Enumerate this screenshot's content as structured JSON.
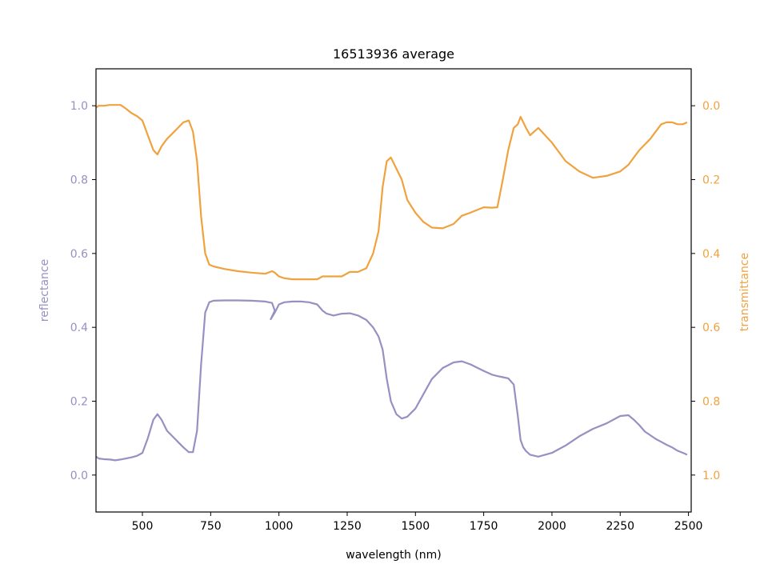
{
  "chart_data": {
    "type": "line",
    "title": "16513936 average",
    "xlabel": "wavelength (nm)",
    "xlim": [
      330,
      2510
    ],
    "x_ticks": [
      500,
      750,
      1000,
      1250,
      1500,
      1750,
      2000,
      2250,
      2500
    ],
    "y_left": {
      "label": "reflectance",
      "lim": [
        -0.1,
        1.1
      ],
      "ticks": [
        0.0,
        0.2,
        0.4,
        0.6,
        0.8,
        1.0
      ],
      "tick_labels": [
        "0.0",
        "0.2",
        "0.4",
        "0.6",
        "0.8",
        "1.0"
      ],
      "color": "#9591c2"
    },
    "y_right": {
      "label": "transmittance",
      "lim": [
        1.1,
        -0.1
      ],
      "inverted": true,
      "ticks": [
        0.0,
        0.2,
        0.4,
        0.6,
        0.8,
        1.0
      ],
      "tick_labels": [
        "0.0",
        "0.2",
        "0.4",
        "0.6",
        "0.8",
        "1.0"
      ],
      "color": "#f0a23e"
    },
    "grid": false,
    "series": [
      {
        "axis": "left",
        "color": "#9591c2",
        "x": [
          330,
          340,
          360,
          380,
          400,
          420,
          440,
          460,
          480,
          500,
          520,
          540,
          555,
          570,
          590,
          610,
          630,
          650,
          670,
          685,
          700,
          715,
          730,
          745,
          760,
          800,
          850,
          900,
          950,
          975,
          985,
          970,
          985,
          1000,
          1020,
          1050,
          1080,
          1110,
          1140,
          1160,
          1175,
          1200,
          1230,
          1260,
          1290,
          1320,
          1345,
          1365,
          1380,
          1395,
          1410,
          1430,
          1450,
          1470,
          1500,
          1530,
          1560,
          1600,
          1640,
          1670,
          1700,
          1750,
          1780,
          1800,
          1820,
          1840,
          1860,
          1875,
          1885,
          1895,
          1905,
          1920,
          1950,
          2000,
          2050,
          2100,
          2150,
          2200,
          2250,
          2280,
          2300,
          2320,
          2340,
          2360,
          2380,
          2400,
          2420,
          2440,
          2460,
          2480,
          2495
        ],
        "y": [
          0.05,
          0.045,
          0.043,
          0.042,
          0.04,
          0.042,
          0.045,
          0.048,
          0.052,
          0.06,
          0.1,
          0.15,
          0.165,
          0.15,
          0.12,
          0.105,
          0.09,
          0.075,
          0.062,
          0.062,
          0.12,
          0.3,
          0.44,
          0.468,
          0.472,
          0.473,
          0.473,
          0.472,
          0.47,
          0.466,
          0.445,
          0.422,
          0.44,
          0.462,
          0.468,
          0.47,
          0.47,
          0.468,
          0.462,
          0.445,
          0.437,
          0.432,
          0.437,
          0.438,
          0.432,
          0.42,
          0.4,
          0.375,
          0.34,
          0.26,
          0.2,
          0.165,
          0.153,
          0.158,
          0.18,
          0.22,
          0.26,
          0.29,
          0.305,
          0.308,
          0.3,
          0.282,
          0.272,
          0.268,
          0.265,
          0.262,
          0.245,
          0.16,
          0.095,
          0.075,
          0.065,
          0.055,
          0.05,
          0.06,
          0.08,
          0.105,
          0.125,
          0.14,
          0.16,
          0.162,
          0.15,
          0.135,
          0.118,
          0.108,
          0.098,
          0.09,
          0.082,
          0.075,
          0.066,
          0.06,
          0.055
        ]
      },
      {
        "axis": "right",
        "color": "#f0a23e",
        "x": [
          330,
          340,
          360,
          380,
          400,
          420,
          440,
          460,
          480,
          500,
          520,
          540,
          555,
          570,
          590,
          610,
          630,
          650,
          670,
          685,
          700,
          715,
          730,
          745,
          760,
          800,
          850,
          900,
          950,
          975,
          985,
          1000,
          1020,
          1050,
          1080,
          1110,
          1140,
          1160,
          1175,
          1200,
          1230,
          1260,
          1290,
          1320,
          1345,
          1365,
          1380,
          1395,
          1410,
          1430,
          1450,
          1470,
          1500,
          1530,
          1560,
          1600,
          1640,
          1670,
          1700,
          1750,
          1780,
          1800,
          1820,
          1840,
          1860,
          1875,
          1885,
          1895,
          1905,
          1920,
          1950,
          2000,
          2050,
          2100,
          2150,
          2200,
          2250,
          2280,
          2300,
          2320,
          2340,
          2360,
          2380,
          2400,
          2420,
          2440,
          2460,
          2480,
          2495
        ],
        "y": [
          0.005,
          0.0,
          0.0,
          -0.002,
          -0.002,
          -0.002,
          0.008,
          0.02,
          0.028,
          0.04,
          0.08,
          0.12,
          0.132,
          0.11,
          0.09,
          0.075,
          0.06,
          0.045,
          0.04,
          0.07,
          0.15,
          0.3,
          0.4,
          0.43,
          0.435,
          0.442,
          0.448,
          0.452,
          0.455,
          0.448,
          0.452,
          0.462,
          0.467,
          0.47,
          0.47,
          0.47,
          0.47,
          0.462,
          0.462,
          0.462,
          0.462,
          0.45,
          0.45,
          0.44,
          0.4,
          0.34,
          0.22,
          0.15,
          0.14,
          0.17,
          0.2,
          0.255,
          0.29,
          0.315,
          0.33,
          0.332,
          0.32,
          0.298,
          0.29,
          0.275,
          0.276,
          0.275,
          0.2,
          0.12,
          0.06,
          0.05,
          0.03,
          0.045,
          0.06,
          0.08,
          0.06,
          0.1,
          0.15,
          0.178,
          0.195,
          0.19,
          0.178,
          0.16,
          0.14,
          0.12,
          0.105,
          0.09,
          0.07,
          0.05,
          0.045,
          0.045,
          0.05,
          0.05,
          0.045
        ]
      }
    ]
  }
}
